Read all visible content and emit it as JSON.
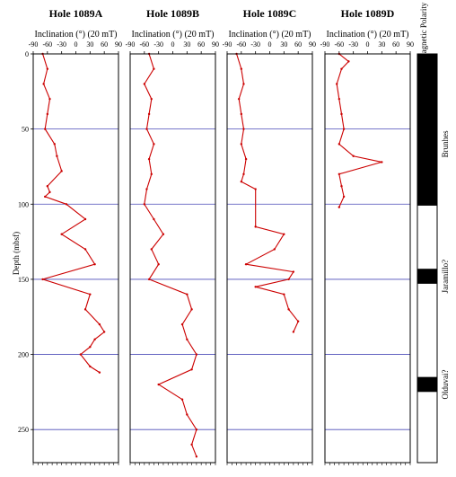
{
  "chart_data": {
    "type": "line",
    "ylabel": "Depth (mbsf)",
    "ylim": [
      0,
      272
    ],
    "yticks": [
      0,
      50,
      100,
      150,
      200,
      250
    ],
    "reference_depths": [
      50,
      100,
      150,
      200,
      250
    ],
    "xlim": [
      -90,
      90
    ],
    "xticks": [
      -90,
      -60,
      -30,
      0,
      30,
      60,
      90
    ],
    "colors": {
      "data": "#cc0000",
      "gridline": "#4b4bb8",
      "frame": "#000000"
    },
    "panels": [
      {
        "title": "Hole  1089A",
        "xlabel": "Inclination (°) (20 mT)",
        "series": [
          {
            "depth": [
              0,
              10,
              20,
              30,
              40,
              50,
              60,
              68,
              78,
              88,
              92,
              95,
              100,
              110,
              120,
              130,
              140,
              150,
              160,
              170,
              180,
              185,
              190,
              195,
              200,
              208,
              212
            ],
            "inclination": [
              -70,
              -60,
              -68,
              -55,
              -60,
              -65,
              -45,
              -40,
              -30,
              -60,
              -55,
              -65,
              -20,
              20,
              -30,
              20,
              40,
              -70,
              30,
              20,
              50,
              60,
              40,
              30,
              10,
              30,
              50
            ]
          }
        ]
      },
      {
        "title": "Hole  1089B",
        "xlabel": "Inclination (°) (20 mT)",
        "series": [
          {
            "depth": [
              0,
              10,
              20,
              30,
              40,
              50,
              60,
              70,
              80,
              90,
              100,
              110,
              120,
              130,
              140,
              150,
              160,
              170,
              180,
              190,
              200,
              210,
              220,
              230,
              240,
              250,
              260,
              268
            ],
            "inclination": [
              -50,
              -40,
              -60,
              -45,
              -50,
              -55,
              -40,
              -50,
              -45,
              -55,
              -60,
              -40,
              -20,
              -45,
              -30,
              -50,
              30,
              40,
              20,
              30,
              50,
              40,
              -30,
              20,
              30,
              50,
              40,
              50
            ]
          }
        ]
      },
      {
        "title": "Hole  1089C",
        "xlabel": "Inclination (°) (20 mT)",
        "series": [
          {
            "depth": [
              0,
              10,
              20,
              30,
              40,
              50,
              60,
              70,
              80,
              85,
              90,
              115,
              120,
              130,
              140,
              145,
              150,
              155,
              160,
              170,
              178,
              185
            ],
            "inclination": [
              -70,
              -60,
              -55,
              -65,
              -60,
              -55,
              -60,
              -50,
              -55,
              -60,
              -30,
              -30,
              30,
              10,
              -50,
              50,
              40,
              -30,
              30,
              40,
              60,
              50
            ]
          }
        ]
      },
      {
        "title": "Hole  1089D",
        "xlabel": "Inclination (°) (20 mT)",
        "series": [
          {
            "depth": [
              0,
              5,
              10,
              20,
              30,
              40,
              50,
              60,
              68,
              72,
              80,
              88,
              95,
              102
            ],
            "inclination": [
              -60,
              -40,
              -55,
              -65,
              -60,
              -55,
              -50,
              -60,
              -30,
              30,
              -60,
              -55,
              -50,
              -60
            ]
          }
        ]
      }
    ],
    "polarity": {
      "title": "Magnetic Polarity",
      "blocks": [
        {
          "from": 0,
          "to": 101,
          "state": "normal"
        },
        {
          "from": 101,
          "to": 143,
          "state": "reversed"
        },
        {
          "from": 143,
          "to": 153,
          "state": "normal"
        },
        {
          "from": 153,
          "to": 215,
          "state": "reversed"
        },
        {
          "from": 215,
          "to": 225,
          "state": "normal"
        },
        {
          "from": 225,
          "to": 272,
          "state": "reversed"
        }
      ],
      "labels": [
        {
          "text": "Brunhes",
          "depth": 60
        },
        {
          "text": "Jaramillo?",
          "depth": 148
        },
        {
          "text": "Olduvai?",
          "depth": 220
        }
      ]
    }
  }
}
